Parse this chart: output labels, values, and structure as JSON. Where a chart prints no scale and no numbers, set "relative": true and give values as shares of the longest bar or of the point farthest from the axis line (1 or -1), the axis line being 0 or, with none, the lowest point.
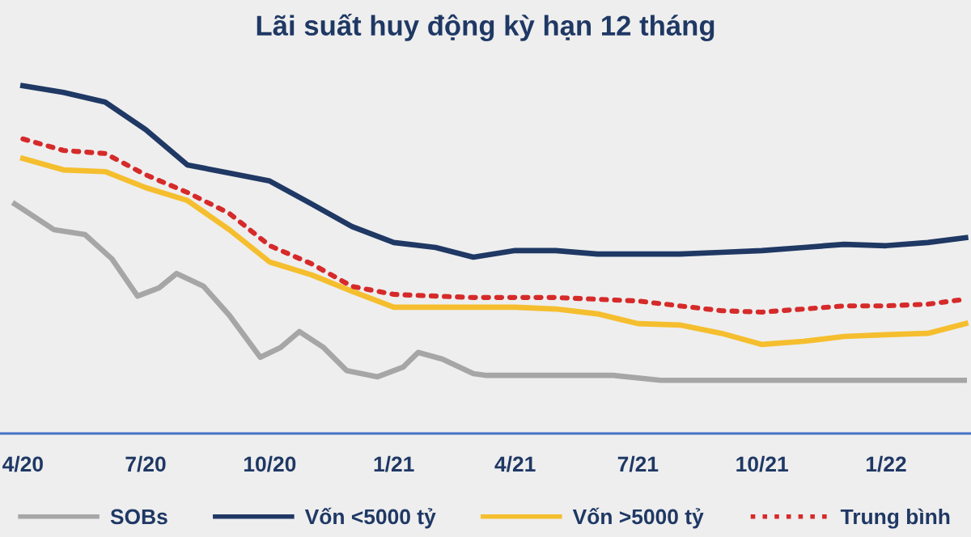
{
  "chart_data": {
    "type": "line",
    "title": "Lãi suất huy động kỳ hạn 12 tháng",
    "relative": true,
    "legend": "bottom",
    "grid": false,
    "x": [
      "2020-04",
      "2020-05",
      "2020-06",
      "2020-07",
      "2020-08",
      "2020-09",
      "2020-10",
      "2020-11",
      "2020-12",
      "2021-01",
      "2021-02",
      "2021-03",
      "2021-04",
      "2021-05",
      "2021-06",
      "2021-07",
      "2021-08",
      "2021-09",
      "2021-10",
      "2021-11",
      "2021-12",
      "2022-01",
      "2022-02",
      "2022-03"
    ],
    "xlim": [
      "2020-03-15",
      "2022-03-05"
    ],
    "xticks": [
      {
        "value": "2020-04-01",
        "label": "4/20"
      },
      {
        "value": "2020-07-01",
        "label": "7/20"
      },
      {
        "value": "2020-10-01",
        "label": "10/20"
      },
      {
        "value": "2021-01-01",
        "label": "1/21"
      },
      {
        "value": "2021-04-01",
        "label": "4/21"
      },
      {
        "value": "2021-07-01",
        "label": "7/21"
      },
      {
        "value": "2021-10-01",
        "label": "10/21"
      },
      {
        "value": "2022-01-01",
        "label": "1/22"
      }
    ],
    "series": [
      {
        "name": "SOBs",
        "color": "#a6a6a6",
        "line_style": "solid",
        "x": [
          "2020-03-26",
          "2020-04-24",
          "2020-05-17",
          "2020-06-06",
          "2020-06-25",
          "2020-07-11",
          "2020-07-24",
          "2020-08-13",
          "2020-09-01",
          "2020-09-24",
          "2020-10-09",
          "2020-10-23",
          "2020-11-10",
          "2020-11-27",
          "2020-12-20",
          "2021-01-08",
          "2021-01-19",
          "2021-02-06",
          "2021-03-01",
          "2021-03-11",
          "2021-06-13",
          "2021-07-18",
          "2022-02-28"
        ],
        "values": [
          0.66,
          0.586,
          0.572,
          0.502,
          0.395,
          0.419,
          0.46,
          0.423,
          0.34,
          0.219,
          0.247,
          0.293,
          0.247,
          0.181,
          0.163,
          0.191,
          0.233,
          0.214,
          0.172,
          0.167,
          0.167,
          0.153,
          0.153
        ]
      },
      {
        "name": "Vốn <5000 tỷ",
        "color": "#1f3864",
        "line_style": "solid",
        "values": [
          1.0,
          0.981,
          0.953,
          0.874,
          0.772,
          0.749,
          0.726,
          0.66,
          0.595,
          0.549,
          0.535,
          0.507,
          0.526,
          0.526,
          0.516,
          0.516,
          0.516,
          0.521,
          0.526,
          0.535,
          0.544,
          0.54,
          0.549,
          0.563
        ]
      },
      {
        "name": "Vốn >5000 tỷ",
        "color": "#f5be2e",
        "line_style": "solid",
        "values": [
          0.791,
          0.758,
          0.753,
          0.707,
          0.67,
          0.586,
          0.493,
          0.456,
          0.409,
          0.363,
          0.363,
          0.363,
          0.363,
          0.358,
          0.344,
          0.316,
          0.312,
          0.288,
          0.256,
          0.265,
          0.279,
          0.284,
          0.288,
          0.316
        ]
      },
      {
        "name": "Trung bình",
        "color": "#d62a2a",
        "line_style": "dotted",
        "values": [
          0.847,
          0.814,
          0.805,
          0.744,
          0.693,
          0.633,
          0.54,
          0.488,
          0.423,
          0.4,
          0.395,
          0.391,
          0.391,
          0.391,
          0.386,
          0.381,
          0.367,
          0.353,
          0.349,
          0.358,
          0.367,
          0.367,
          0.372,
          0.386
        ]
      }
    ]
  }
}
